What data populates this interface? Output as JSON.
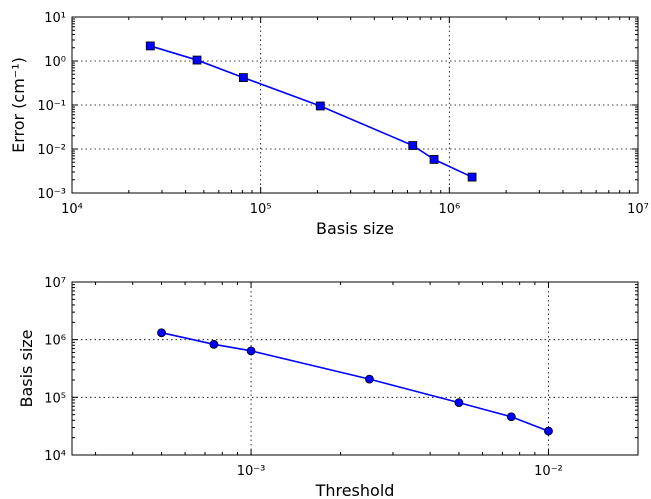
{
  "chart_data": [
    {
      "type": "line",
      "xlabel": "Basis size",
      "ylabel": "Error (cm⁻¹)",
      "xscale": "log",
      "yscale": "log",
      "xlim": [
        10000,
        10000000
      ],
      "ylim": [
        0.001,
        10
      ],
      "xtick_exponents": [
        4,
        5,
        6,
        7
      ],
      "ytick_exponents": [
        -3,
        -2,
        -1,
        0,
        1
      ],
      "grid": true,
      "marker": "square",
      "color": "#0000ff",
      "series": [
        {
          "x": [
            26000,
            46000,
            81000,
            207000,
            640000,
            830000,
            1320000
          ],
          "y": [
            2.2,
            1.05,
            0.42,
            0.095,
            0.012,
            0.0058,
            0.0023
          ]
        }
      ]
    },
    {
      "type": "line",
      "xlabel": "Threshold",
      "ylabel": "Basis size",
      "xscale": "log",
      "yscale": "log",
      "xlim": [
        0.00025,
        0.02
      ],
      "ylim": [
        10000,
        10000000
      ],
      "xtick_exponents": [
        -3,
        -2
      ],
      "ytick_exponents": [
        4,
        5,
        6,
        7
      ],
      "grid": true,
      "marker": "circle",
      "color": "#0000ff",
      "series": [
        {
          "x": [
            0.0005,
            0.00075,
            0.001,
            0.0025,
            0.005,
            0.0075,
            0.01
          ],
          "y": [
            1320000,
            830000,
            640000,
            207000,
            81000,
            46000,
            26000
          ]
        }
      ]
    }
  ]
}
